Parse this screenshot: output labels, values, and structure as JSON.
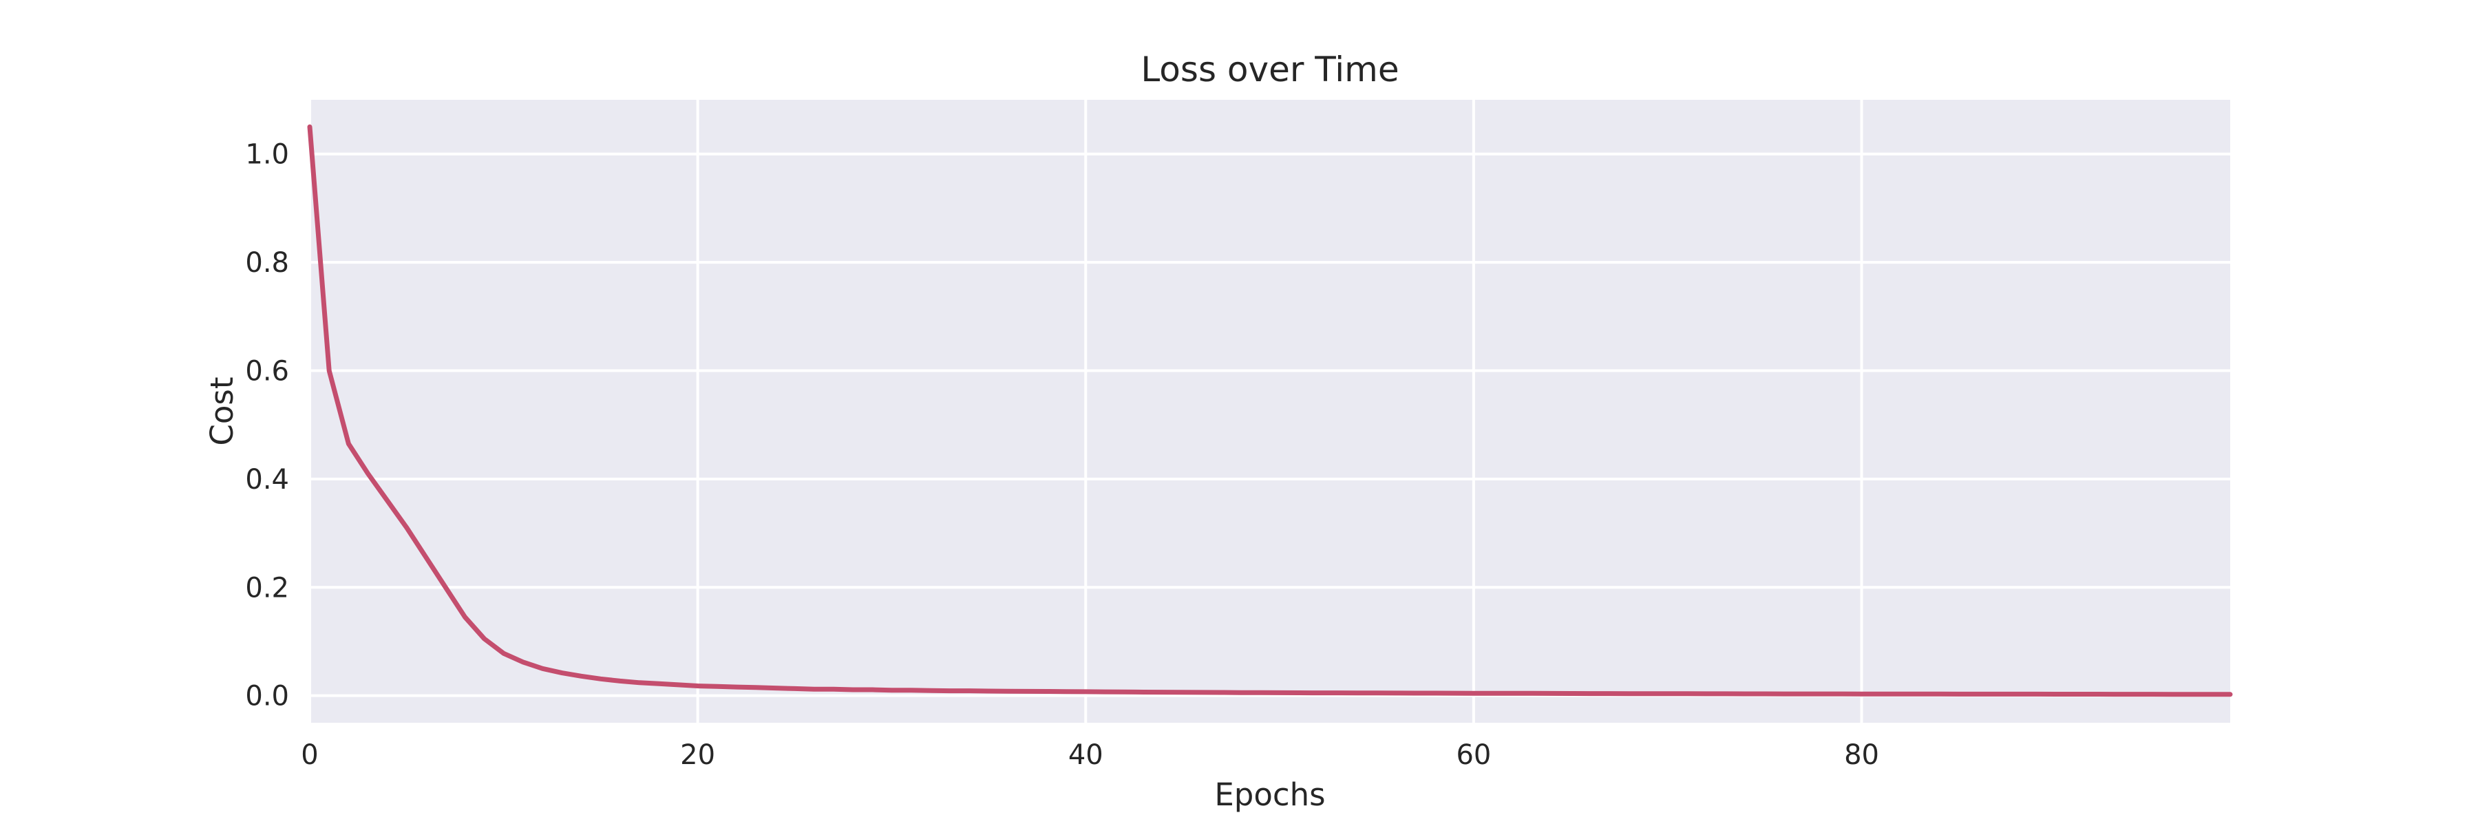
{
  "chart_data": {
    "type": "line",
    "title": "Loss over Time",
    "xlabel": "Epochs",
    "ylabel": "Cost",
    "xlim": [
      0,
      99
    ],
    "ylim": [
      -0.05,
      1.1
    ],
    "xticks": [
      0,
      20,
      40,
      60,
      80
    ],
    "xtick_labels": [
      "0",
      "20",
      "40",
      "60",
      "80"
    ],
    "yticks": [
      0.0,
      0.2,
      0.4,
      0.6,
      0.8,
      1.0
    ],
    "ytick_labels": [
      "0.0",
      "0.2",
      "0.4",
      "0.6",
      "0.8",
      "1.0"
    ],
    "grid": true,
    "colors": {
      "plot_background": "#eaeaf2",
      "grid": "#ffffff",
      "line": "#c44e6e",
      "text": "#262626"
    },
    "series": [
      {
        "color": "#c44e6e",
        "x": [
          0,
          1,
          2,
          3,
          4,
          5,
          6,
          7,
          8,
          9,
          10,
          11,
          12,
          13,
          14,
          15,
          16,
          17,
          18,
          19,
          20,
          21,
          22,
          23,
          24,
          25,
          26,
          27,
          28,
          29,
          30,
          31,
          32,
          33,
          34,
          35,
          36,
          37,
          38,
          39,
          40,
          41,
          42,
          43,
          44,
          45,
          46,
          47,
          48,
          49,
          50,
          51,
          52,
          53,
          54,
          55,
          56,
          57,
          58,
          59,
          60,
          61,
          62,
          63,
          64,
          65,
          66,
          67,
          68,
          69,
          70,
          71,
          72,
          73,
          74,
          75,
          76,
          77,
          78,
          79,
          80,
          81,
          82,
          83,
          84,
          85,
          86,
          87,
          88,
          89,
          90,
          91,
          92,
          93,
          94,
          95,
          96,
          97,
          98,
          99
        ],
        "y": [
          1.05,
          0.6,
          0.465,
          0.41,
          0.36,
          0.31,
          0.255,
          0.2,
          0.145,
          0.105,
          0.078,
          0.062,
          0.05,
          0.042,
          0.036,
          0.031,
          0.027,
          0.024,
          0.022,
          0.02,
          0.018,
          0.017,
          0.016,
          0.015,
          0.014,
          0.013,
          0.012,
          0.012,
          0.011,
          0.011,
          0.01,
          0.01,
          0.0095,
          0.009,
          0.009,
          0.0085,
          0.0082,
          0.008,
          0.0078,
          0.0075,
          0.0073,
          0.007,
          0.0068,
          0.0066,
          0.0064,
          0.0062,
          0.006,
          0.0059,
          0.0057,
          0.0056,
          0.0054,
          0.0053,
          0.0052,
          0.0051,
          0.005,
          0.0049,
          0.0048,
          0.0047,
          0.0046,
          0.0045,
          0.0044,
          0.0043,
          0.0042,
          0.0042,
          0.0041,
          0.004,
          0.0039,
          0.0039,
          0.0038,
          0.0037,
          0.0037,
          0.0036,
          0.0035,
          0.0035,
          0.0034,
          0.0034,
          0.0033,
          0.0033,
          0.0032,
          0.0032,
          0.0031,
          0.0031,
          0.003,
          0.003,
          0.003,
          0.0029,
          0.0029,
          0.0028,
          0.0028,
          0.0028,
          0.0027,
          0.0027,
          0.0027,
          0.0026,
          0.0026,
          0.0026,
          0.0025,
          0.0025,
          0.0025,
          0.0024
        ]
      }
    ]
  }
}
